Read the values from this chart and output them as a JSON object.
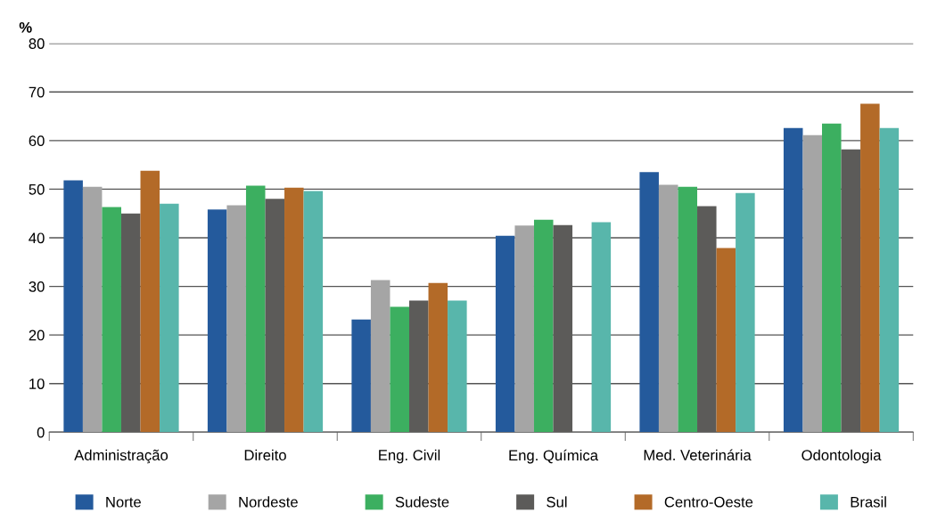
{
  "chart_data": {
    "type": "bar",
    "ylabel": "%",
    "categories": [
      "Administração",
      "Direito",
      "Eng. Civil",
      "Eng. Química",
      "Med. Veterinária",
      "Odontologia"
    ],
    "series": [
      {
        "name": "Norte",
        "color": "#245a9c",
        "values": [
          51.8,
          45.8,
          23.2,
          40.4,
          53.5,
          62.6
        ]
      },
      {
        "name": "Nordeste",
        "color": "#a5a5a5",
        "values": [
          50.5,
          46.7,
          31.3,
          42.5,
          50.9,
          61.1
        ]
      },
      {
        "name": "Sudeste",
        "color": "#3caf60",
        "values": [
          46.3,
          50.7,
          25.8,
          43.7,
          50.5,
          63.5
        ]
      },
      {
        "name": "Sul",
        "color": "#5c5b59",
        "values": [
          45.0,
          48.0,
          27.1,
          42.6,
          46.5,
          58.2
        ]
      },
      {
        "name": "Centro-Oeste",
        "color": "#b36a28",
        "values": [
          53.8,
          50.3,
          30.7,
          null,
          37.9,
          67.6
        ]
      },
      {
        "name": "Brasil",
        "color": "#58b6ab",
        "values": [
          47.0,
          49.6,
          27.1,
          43.2,
          49.2,
          62.6
        ]
      }
    ],
    "ylim": [
      0,
      80
    ],
    "yticks": [
      0,
      10,
      20,
      30,
      40,
      50,
      60,
      70,
      80
    ],
    "grid": "y",
    "legend": "bottom"
  }
}
